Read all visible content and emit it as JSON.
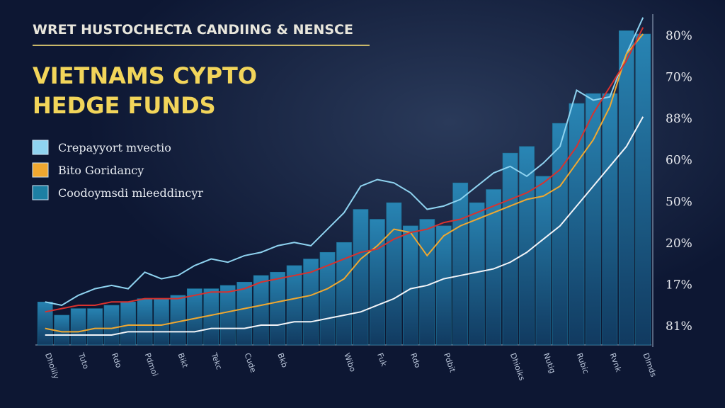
{
  "chart_data": {
    "type": "combo",
    "subtitle": "WRET HUSTOCHECTA CANDIING & NENSCE",
    "title_lines": [
      "VIETNAMS CYPTO",
      "HEDGE FUNDS"
    ],
    "ylim": [
      0,
      100
    ],
    "axis_labels": [
      "80%",
      "70%",
      "88%",
      "60%",
      "50%",
      "20%",
      "17%",
      "81%"
    ],
    "categories": [
      "Dhoiily",
      null,
      "Tuto",
      null,
      "Rdo",
      null,
      "Pdmoi",
      null,
      "Bikt",
      null,
      "Tekc",
      null,
      "Cude",
      null,
      "Bkb",
      null,
      null,
      null,
      "Wibo",
      null,
      "Fuk",
      null,
      "Rdo",
      null,
      "Pdbit",
      null,
      null,
      null,
      "Dhioiks",
      null,
      "Nutig",
      null,
      "Rubic",
      null,
      "Rvnk",
      null,
      "Dlmds"
    ],
    "series": [
      {
        "name": "Crepayyort mvectio",
        "type": "line",
        "color": "#8fd3f0",
        "values": [
          13,
          12,
          15,
          17,
          18,
          17,
          22,
          20,
          21,
          24,
          26,
          25,
          27,
          28,
          30,
          31,
          30,
          35,
          40,
          48,
          50,
          49,
          46,
          41,
          42,
          44,
          48,
          52,
          54,
          51,
          55,
          60,
          77,
          74,
          75,
          88,
          99
        ]
      },
      {
        "name": "Bito Goridancy",
        "type": "line",
        "color": "#f0a830",
        "values": [
          5,
          4,
          4,
          5,
          5,
          6,
          6,
          6,
          7,
          8,
          9,
          10,
          11,
          12,
          13,
          14,
          15,
          17,
          20,
          26,
          30,
          35,
          34,
          27,
          33,
          36,
          38,
          40,
          42,
          44,
          45,
          48,
          55,
          62,
          72,
          88,
          94
        ]
      },
      {
        "name": "Coodoymsdi mleeddincyr",
        "type": "bar",
        "color": "#1d7fa3",
        "values": [
          13,
          9,
          11,
          11,
          12,
          13,
          14,
          14,
          15,
          17,
          17,
          18,
          19,
          21,
          22,
          24,
          26,
          28,
          31,
          41,
          38,
          43,
          36,
          38,
          36,
          49,
          43,
          47,
          58,
          60,
          51,
          67,
          73,
          76,
          76,
          95,
          94
        ]
      },
      {
        "type": "line",
        "color": "#d8322e",
        "values": [
          10,
          11,
          12,
          12,
          13,
          13,
          14,
          14,
          14,
          15,
          16,
          16,
          17,
          19,
          20,
          21,
          22,
          24,
          26,
          28,
          29,
          32,
          34,
          35,
          37,
          38,
          40,
          42,
          44,
          46,
          49,
          53,
          60,
          70,
          78,
          86,
          96
        ]
      },
      {
        "type": "line",
        "color": "#f2f4f8",
        "values": [
          3,
          3,
          3,
          3,
          3,
          4,
          4,
          4,
          4,
          4,
          5,
          5,
          5,
          6,
          6,
          7,
          7,
          8,
          9,
          10,
          12,
          14,
          17,
          18,
          20,
          21,
          22,
          23,
          25,
          28,
          32,
          36,
          42,
          48,
          54,
          60,
          69
        ]
      }
    ]
  }
}
